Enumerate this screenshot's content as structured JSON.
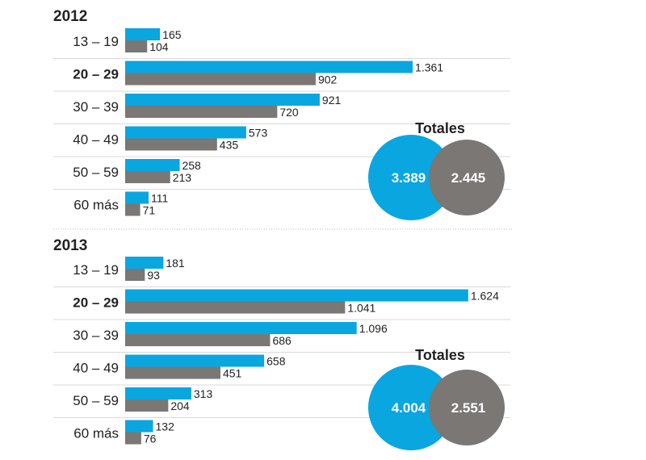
{
  "colors": {
    "series_a": "#0aa6e0",
    "series_b": "#7a7775",
    "divider": "#d9d9d9",
    "section_divider": "#bdbdbd"
  },
  "chart_data": [
    {
      "type": "bar",
      "title": "2012",
      "orientation": "horizontal",
      "categories": [
        "13 – 19",
        "20 – 29",
        "30 – 39",
        "40 – 49",
        "50 – 59",
        "60 más"
      ],
      "highlighted_category": "20 – 29",
      "series": [
        {
          "values": [
            165,
            1361,
            921,
            573,
            258,
            111
          ],
          "labels": [
            "165",
            "1.361",
            "921",
            "573",
            "258",
            "111"
          ],
          "color": "#0aa6e0"
        },
        {
          "values": [
            104,
            902,
            720,
            435,
            213,
            71
          ],
          "labels": [
            "104",
            "902",
            "720",
            "435",
            "213",
            "71"
          ],
          "color": "#7a7775"
        }
      ],
      "totals": {
        "title": "Totales",
        "values": [
          "3.389",
          "2.445"
        ]
      }
    },
    {
      "type": "bar",
      "title": "2013",
      "orientation": "horizontal",
      "categories": [
        "13 – 19",
        "20 – 29",
        "30 – 39",
        "40 – 49",
        "50 – 59",
        "60 más"
      ],
      "highlighted_category": "20 – 29",
      "series": [
        {
          "values": [
            181,
            1624,
            1096,
            658,
            313,
            132
          ],
          "labels": [
            "181",
            "1.624",
            "1.096",
            "658",
            "313",
            "132"
          ],
          "color": "#0aa6e0"
        },
        {
          "values": [
            93,
            1041,
            686,
            451,
            204,
            76
          ],
          "labels": [
            "93",
            "1.041",
            "686",
            "451",
            "204",
            "76"
          ],
          "color": "#7a7775"
        }
      ],
      "totals": {
        "title": "Totales",
        "values": [
          "4.004",
          "2.551"
        ]
      }
    }
  ]
}
